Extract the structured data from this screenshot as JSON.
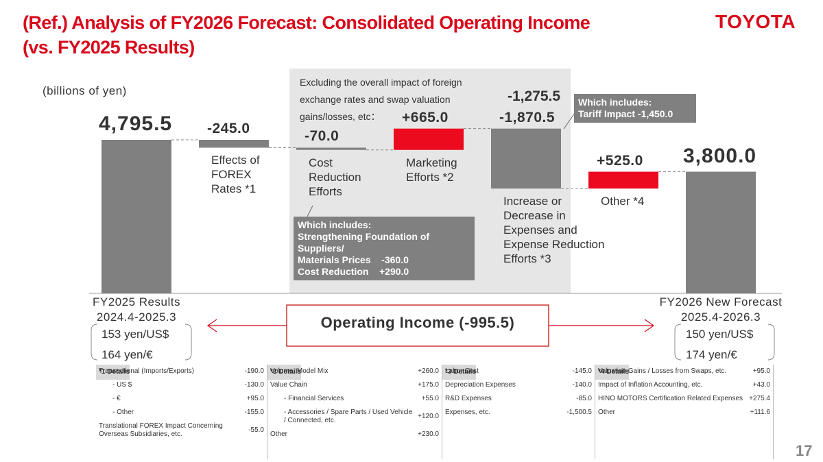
{
  "logo": "TOYOTA",
  "title": [
    "(Ref.) Analysis of FY2026 Forecast: Consolidated Operating Income",
    "(vs. FY2025 Results)"
  ],
  "chart_data": {
    "type": "waterfall",
    "unit": "(billions of yen)",
    "categories": [
      "FY2025 Results",
      "Effects of FOREX Rates *1",
      "Cost Reduction Efforts",
      "Marketing Efforts *2",
      "Increase or Decrease in Expenses and Expense Reduction Efforts *3",
      "Other *4",
      "FY2026 New Forecast"
    ],
    "values": [
      4795.5,
      -245.0,
      -70.0,
      665.0,
      -1870.5,
      525.0,
      3800.0
    ],
    "value_labels": [
      "4,795.5",
      "-245.0",
      "-70.0",
      "+665.0",
      "-1,870.5",
      "+525.0",
      "3,800.0"
    ],
    "colors": {
      "total": "#808080",
      "decrease": "#808080",
      "increase": "#eb0a1e"
    },
    "periods": [
      "2024.4-2025.3",
      "2025.4-2026.3"
    ],
    "rates": [
      [
        "153 yen/US$",
        "164 yen/€"
      ],
      [
        "150 yen/US$",
        "174 yen/€"
      ]
    ],
    "note": {
      "text": "Excluding the overall impact of foreign exchange rates and swap valuation gains/losses, etc：",
      "value": "-1,275.5"
    },
    "callouts": [
      [
        "Which includes:",
        "Tariff Impact -1,450.0"
      ],
      [
        "Which includes:",
        "Strengthening Foundation of Suppliers/",
        "Materials Prices    -360.0",
        "Cost Reduction    +290.0"
      ]
    ],
    "summary": "Operating Income (-995.5)"
  },
  "details": [
    {
      "title": "*1 Details",
      "rows": [
        [
          "Transactional (Imports/Exports)",
          "-190.0"
        ],
        [
          "- US $",
          "-130.0"
        ],
        [
          "- €",
          "+95.0"
        ],
        [
          "- Other",
          "-155.0"
        ],
        [
          "Translational FOREX Impact Concerning Overseas Subsidiaries, etc.",
          "-55.0"
        ]
      ]
    },
    {
      "title": "*2 Details",
      "rows": [
        [
          "Volume, Model Mix",
          "+260.0"
        ],
        [
          "Value Chain",
          "+175.0"
        ],
        [
          "- Financial Services",
          "+55.0"
        ],
        [
          "- Accessories / Spare Parts / Used Vehicle / Connected, etc.",
          "+120.0"
        ],
        [
          "Other",
          "+230.0"
        ]
      ]
    },
    {
      "title": "*3 Details",
      "rows": [
        [
          "Labor Cost",
          "-145.0"
        ],
        [
          "Depreciation Expenses",
          "-140.0"
        ],
        [
          "R&D Expenses",
          "-85.0"
        ],
        [
          "Expenses, etc.",
          "-1,500.5"
        ]
      ]
    },
    {
      "title": "*4 Details",
      "rows": [
        [
          "Valuation Gains / Losses from Swaps, etc.",
          "+95.0"
        ],
        [
          "Impact of Inflation Accounting, etc.",
          "+43.0"
        ],
        [
          "HINO MOTORS Certification Related Expenses",
          "+275.4"
        ],
        [
          "Other",
          "+111.6"
        ]
      ]
    }
  ],
  "page_number": "17"
}
